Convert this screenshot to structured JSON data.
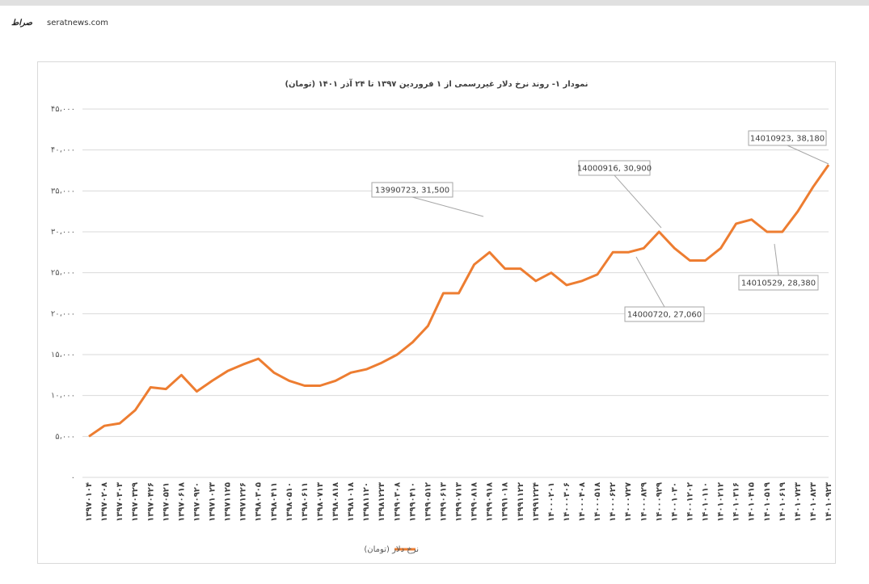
{
  "watermark": {
    "logo": "صراط",
    "site": "seratnews.com"
  },
  "chart_data": {
    "type": "line",
    "title": "نمودار ۱- روند نرخ دلار غیررسمی از ۱ فروردین ۱۳۹۷ تا ۲۴ آذر ۱۴۰۱ (تومان)",
    "categories": [
      "۱۳۹۷۰۱۰۴",
      "۱۳۹۷۰۲۰۸",
      "۱۳۹۷۰۳۰۳",
      "۱۳۹۷۰۳۲۹",
      "۱۳۹۷۰۴۲۶",
      "۱۳۹۷۰۵۲۱",
      "۱۳۹۷۰۶۱۸",
      "۱۳۹۷۰۹۲۰",
      "۱۳۹۷۱۰۲۳",
      "۱۳۹۷۱۱۲۵",
      "۱۳۹۷۱۲۲۶",
      "۱۳۹۸۰۳۰۵",
      "۱۳۹۸۰۴۱۱",
      "۱۳۹۸۰۵۱۰",
      "۱۳۹۸۰۶۱۱",
      "۱۳۹۸۰۷۱۳",
      "۱۳۹۸۰۸۱۸",
      "۱۳۹۸۱۰۱۸",
      "۱۳۹۸۱۱۲۰",
      "۱۳۹۸۱۲۲۳",
      "۱۳۹۹۰۳۰۸",
      "۱۳۹۹۰۴۱۰",
      "۱۳۹۹۰۵۱۲",
      "۱۳۹۹۰۶۱۳",
      "۱۳۹۹۰۷۱۳",
      "۱۳۹۹۰۸۱۸",
      "۱۳۹۹۰۹۱۸",
      "۱۳۹۹۱۰۱۸",
      "۱۳۹۹۱۱۲۲",
      "۱۳۹۹۱۲۲۴",
      "۱۴۰۰۰۲۰۱",
      "۱۴۰۰۰۳۰۶",
      "۱۴۰۰۰۴۰۸",
      "۱۴۰۰۰۵۱۸",
      "۱۴۰۰۰۶۲۲",
      "۱۴۰۰۰۷۲۷",
      "۱۴۰۰۰۸۲۹",
      "۱۴۰۰۰۹۲۹",
      "۱۴۰۰۱۰۳۰",
      "۱۴۰۰۱۲۰۲",
      "۱۴۰۱۰۱۱۰",
      "۱۴۰۱۰۲۱۲",
      "۱۴۰۱۰۳۱۶",
      "۱۴۰۱۰۴۱۵",
      "۱۴۰۱۰۵۱۹",
      "۱۴۰۱۰۶۱۹",
      "۱۴۰۱۰۷۲۳",
      "۱۴۰۱۰۸۲۳",
      "۱۴۰۱۰۹۲۳"
    ],
    "series": [
      {
        "name": "نرخ دلار (تومان)",
        "color": "#ed7d31",
        "values": [
          5000,
          6300,
          6600,
          8200,
          11000,
          10800,
          12500,
          10500,
          11800,
          13000,
          13800,
          14500,
          12800,
          11800,
          11200,
          11200,
          11800,
          12800,
          13200,
          14000,
          15000,
          16500,
          18500,
          22500,
          22500,
          26000,
          27500,
          25500,
          25500,
          24000,
          25000,
          23500,
          24000,
          24800,
          27500,
          27500,
          28000,
          30000,
          28000,
          26500,
          26500,
          28000,
          31000,
          31500,
          30000,
          30000,
          32500,
          35500,
          38180
        ]
      }
    ],
    "ylim": [
      0,
      45000
    ],
    "yticks": [
      {
        "value": 0,
        "label": "۰"
      },
      {
        "value": 5000,
        "label": "۵،۰۰۰"
      },
      {
        "value": 10000,
        "label": "۱۰،۰۰۰"
      },
      {
        "value": 15000,
        "label": "۱۵،۰۰۰"
      },
      {
        "value": 20000,
        "label": "۲۰،۰۰۰"
      },
      {
        "value": 25000,
        "label": "۲۵،۰۰۰"
      },
      {
        "value": 30000,
        "label": "۳۰،۰۰۰"
      },
      {
        "value": 35000,
        "label": "۳۵،۰۰۰"
      },
      {
        "value": 40000,
        "label": "۴۰،۰۰۰"
      },
      {
        "value": 45000,
        "label": "۴۵،۰۰۰"
      }
    ],
    "grid": true,
    "legend": "bottom",
    "annotations": [
      "13990723, 31,500",
      "14000916, 30,900",
      "14010923, 38,180",
      "14010529, 28,380",
      "14000720, 27,060"
    ]
  }
}
